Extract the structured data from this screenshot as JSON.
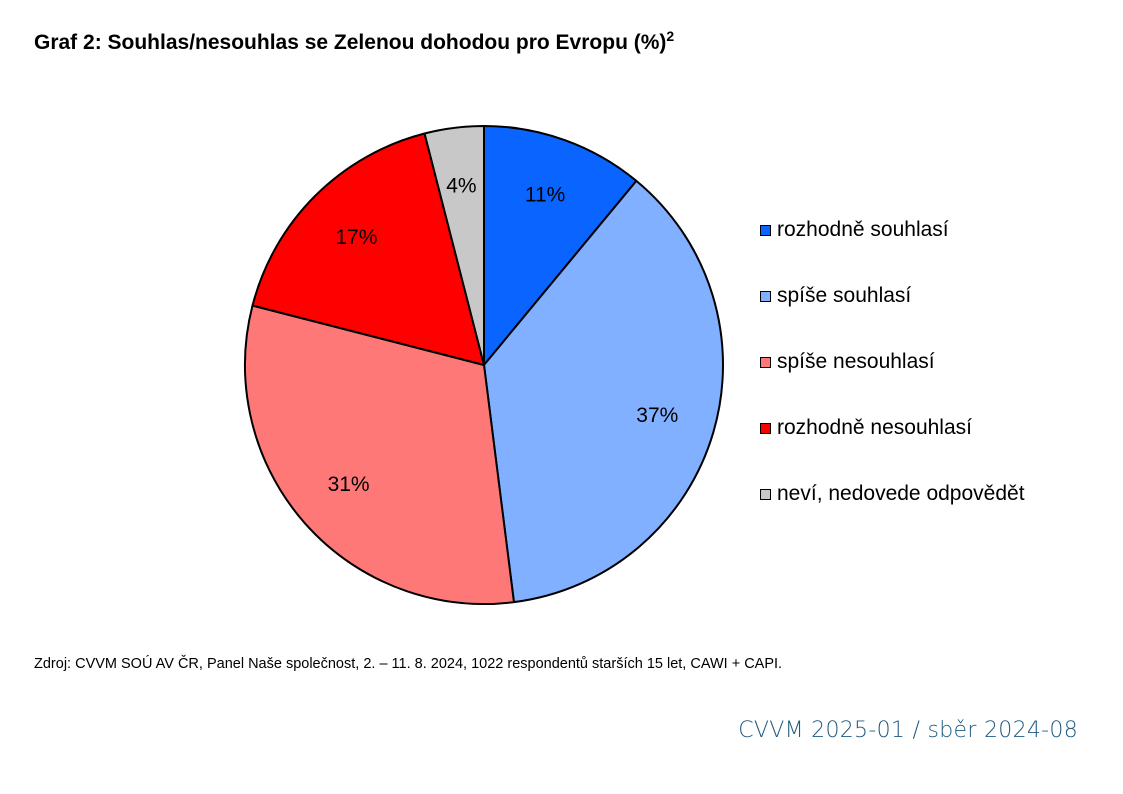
{
  "chart_data": {
    "type": "pie",
    "title": "Graf 2: Souhlas/nesouhlas se Zelenou dohodou pro Evropu (%)",
    "title_superscript": "2",
    "slices": [
      {
        "label": "rozhodně souhlasí",
        "value": 11,
        "color": "#0a64ff"
      },
      {
        "label": "spíše souhlasí",
        "value": 37,
        "color": "#80b0ff"
      },
      {
        "label": "spíše nesouhlasí",
        "value": 31,
        "color": "#ff7878"
      },
      {
        "label": "rozhodně nesouhlasí",
        "value": 17,
        "color": "#ff0000"
      },
      {
        "label": "neví, nedovede odpovědět",
        "value": 4,
        "color": "#c8c8c8"
      }
    ],
    "value_suffix": "%",
    "legend_position": "right",
    "start": "top",
    "direction": "clockwise"
  },
  "source_note": "Zdroj: CVVM SOÚ AV ČR, Panel Naše společnost, 2. – 11. 8. 2024, 1022 respondentů starších 15 let, CAWI + CAPI.",
  "footer_tag": "CVVM 2025-01 / sběr 2024-08"
}
